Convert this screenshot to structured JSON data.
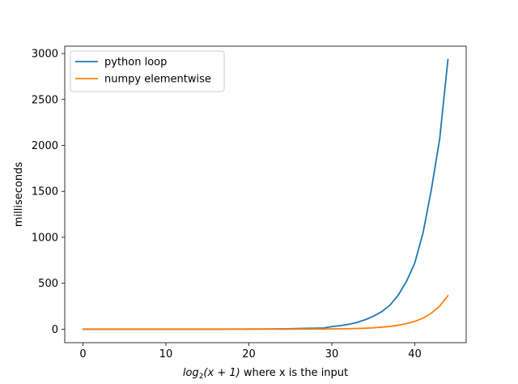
{
  "chart_data": {
    "type": "line",
    "title": "",
    "xlabel_prefix": "log",
    "xlabel_sub": "2",
    "xlabel_math": "(x + 1)",
    "xlabel_suffix": " where x is the input",
    "ylabel": "milliseconds",
    "xlim": [
      -2.2,
      46.2
    ],
    "ylim": [
      -147,
      3080
    ],
    "xticks": [
      0,
      10,
      20,
      30,
      40
    ],
    "yticks": [
      0,
      500,
      1000,
      1500,
      2000,
      2500,
      3000
    ],
    "grid": false,
    "legend_position": "top-left",
    "x": [
      0,
      1,
      2,
      3,
      4,
      5,
      6,
      7,
      8,
      9,
      10,
      11,
      12,
      13,
      14,
      15,
      16,
      17,
      18,
      19,
      20,
      21,
      22,
      23,
      24,
      25,
      26,
      27,
      28,
      29,
      30,
      31,
      32,
      33,
      34,
      35,
      36,
      37,
      38,
      39,
      40,
      41,
      42,
      43,
      44
    ],
    "series": [
      {
        "name": "python loop",
        "color": "#1f77b4",
        "values": [
          0,
          0,
          0,
          0,
          0,
          0,
          0,
          0,
          0,
          0,
          0,
          0,
          0,
          0,
          0,
          0,
          0,
          0,
          0.5,
          0.6,
          1,
          1.5,
          2,
          3,
          4,
          5,
          7,
          9,
          10,
          13,
          28,
          38,
          53,
          72,
          102,
          140,
          190,
          260,
          370,
          520,
          720,
          1050,
          1520,
          2070,
          2935
        ]
      },
      {
        "name": "numpy elementwise",
        "color": "#ff7f0e",
        "values": [
          0,
          0,
          0,
          0,
          0,
          0,
          0,
          0,
          0,
          0,
          0,
          0,
          0,
          0,
          0,
          0,
          0,
          0,
          0,
          0,
          0,
          0,
          0,
          0,
          0,
          0,
          0.5,
          1,
          1.5,
          2,
          3,
          4,
          5,
          7,
          10,
          15,
          22,
          30,
          43,
          60,
          85,
          120,
          175,
          250,
          365
        ]
      }
    ]
  }
}
